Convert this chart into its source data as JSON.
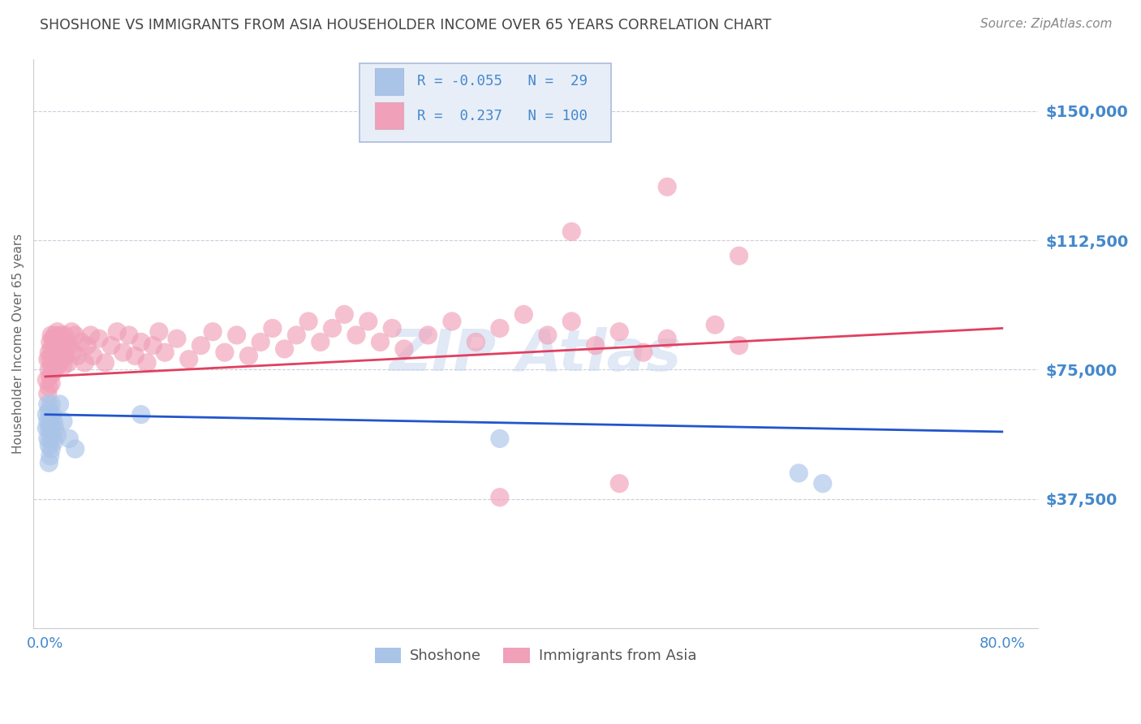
{
  "title": "SHOSHONE VS IMMIGRANTS FROM ASIA HOUSEHOLDER INCOME OVER 65 YEARS CORRELATION CHART",
  "source": "Source: ZipAtlas.com",
  "ylabel": "Householder Income Over 65 years",
  "R_shoshone": -0.055,
  "N_shoshone": 29,
  "R_immigrants": 0.237,
  "N_immigrants": 100,
  "shoshone_color": "#aac4e8",
  "immigrants_color": "#f0a0b8",
  "shoshone_line_color": "#2255cc",
  "immigrants_line_color": "#e04060",
  "background_color": "#ffffff",
  "grid_color": "#ccccdd",
  "tick_label_color": "#4488cc",
  "title_color": "#444444",
  "source_color": "#888888",
  "ylim": [
    0,
    165000
  ],
  "xlim": [
    -0.01,
    0.83
  ],
  "yticks": [
    0,
    37500,
    75000,
    112500,
    150000
  ],
  "ytick_labels": [
    "",
    "$37,500",
    "$75,000",
    "$112,500",
    "$150,000"
  ],
  "watermark": "ZIPAtlas",
  "watermark_color": "#c8d8f0",
  "legend_box_color": "#e8eef8",
  "legend_border_color": "#aabbdd",
  "shoshone_x": [
    0.001,
    0.001,
    0.002,
    0.002,
    0.002,
    0.003,
    0.003,
    0.003,
    0.003,
    0.004,
    0.004,
    0.004,
    0.005,
    0.005,
    0.005,
    0.006,
    0.006,
    0.007,
    0.007,
    0.008,
    0.01,
    0.012,
    0.015,
    0.02,
    0.025,
    0.08,
    0.38,
    0.63,
    0.65
  ],
  "shoshone_y": [
    62000,
    58000,
    65000,
    60000,
    55000,
    63000,
    58000,
    53000,
    48000,
    60000,
    55000,
    50000,
    65000,
    58000,
    52000,
    62000,
    56000,
    60000,
    54000,
    58000,
    56000,
    65000,
    60000,
    55000,
    52000,
    62000,
    55000,
    45000,
    42000
  ],
  "immigrants_x": [
    0.001,
    0.002,
    0.002,
    0.003,
    0.003,
    0.003,
    0.004,
    0.004,
    0.004,
    0.005,
    0.005,
    0.005,
    0.005,
    0.006,
    0.006,
    0.006,
    0.007,
    0.007,
    0.008,
    0.008,
    0.008,
    0.009,
    0.009,
    0.01,
    0.01,
    0.01,
    0.011,
    0.011,
    0.012,
    0.012,
    0.013,
    0.013,
    0.014,
    0.014,
    0.015,
    0.015,
    0.016,
    0.017,
    0.018,
    0.019,
    0.02,
    0.022,
    0.023,
    0.025,
    0.027,
    0.03,
    0.033,
    0.035,
    0.038,
    0.04,
    0.045,
    0.05,
    0.055,
    0.06,
    0.065,
    0.07,
    0.075,
    0.08,
    0.085,
    0.09,
    0.095,
    0.1,
    0.11,
    0.12,
    0.13,
    0.14,
    0.15,
    0.16,
    0.17,
    0.18,
    0.19,
    0.2,
    0.21,
    0.22,
    0.23,
    0.24,
    0.25,
    0.26,
    0.27,
    0.28,
    0.29,
    0.3,
    0.32,
    0.34,
    0.36,
    0.38,
    0.4,
    0.42,
    0.44,
    0.46,
    0.48,
    0.5,
    0.52,
    0.56,
    0.58,
    0.44,
    0.52,
    0.58,
    0.48,
    0.38
  ],
  "immigrants_y": [
    72000,
    68000,
    78000,
    70000,
    75000,
    80000,
    73000,
    78000,
    83000,
    76000,
    71000,
    81000,
    85000,
    79000,
    74000,
    84000,
    77000,
    82000,
    80000,
    75000,
    85000,
    78000,
    83000,
    76000,
    81000,
    86000,
    79000,
    84000,
    77000,
    82000,
    80000,
    85000,
    78000,
    83000,
    76000,
    81000,
    85000,
    79000,
    83000,
    77000,
    82000,
    86000,
    80000,
    85000,
    79000,
    83000,
    77000,
    82000,
    85000,
    79000,
    84000,
    77000,
    82000,
    86000,
    80000,
    85000,
    79000,
    83000,
    77000,
    82000,
    86000,
    80000,
    84000,
    78000,
    82000,
    86000,
    80000,
    85000,
    79000,
    83000,
    87000,
    81000,
    85000,
    89000,
    83000,
    87000,
    91000,
    85000,
    89000,
    83000,
    87000,
    81000,
    85000,
    89000,
    83000,
    87000,
    91000,
    85000,
    89000,
    82000,
    86000,
    80000,
    84000,
    88000,
    82000,
    115000,
    128000,
    108000,
    42000,
    38000
  ]
}
